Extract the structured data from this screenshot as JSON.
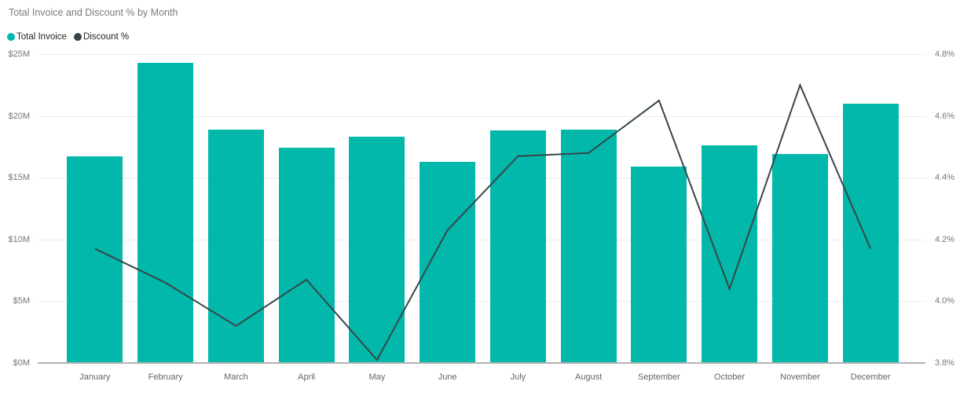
{
  "title": "Total Invoice and Discount % by Month",
  "legend": {
    "items": [
      {
        "label": "Total Invoice",
        "color": "#01B8AA"
      },
      {
        "label": "Discount %",
        "color": "#374649"
      }
    ]
  },
  "left_axis": {
    "tick_labels": [
      "$25M",
      "$20M",
      "$15M",
      "$10M",
      "$5M",
      "$0M"
    ]
  },
  "right_axis": {
    "tick_labels": [
      "4.8%",
      "4.6%",
      "4.4%",
      "4.2%",
      "4.0%",
      "3.8%"
    ]
  },
  "chart_data": {
    "type": "combo-bar-line",
    "title": "Total Invoice and Discount % by Month",
    "categories": [
      "January",
      "February",
      "March",
      "April",
      "May",
      "June",
      "July",
      "August",
      "September",
      "October",
      "November",
      "December"
    ],
    "series": [
      {
        "name": "Total Invoice",
        "type": "bar",
        "axis": "left",
        "color": "#01B8AA",
        "unit": "$M",
        "values": [
          16.7,
          24.3,
          18.9,
          17.4,
          18.3,
          16.3,
          18.8,
          18.9,
          15.9,
          17.6,
          16.9,
          21.0
        ]
      },
      {
        "name": "Discount %",
        "type": "line",
        "axis": "right",
        "color": "#374649",
        "unit": "%",
        "values": [
          4.17,
          4.06,
          3.92,
          4.07,
          3.81,
          4.23,
          4.47,
          4.48,
          4.65,
          4.04,
          4.7,
          4.17
        ]
      }
    ],
    "left_ylim": [
      0,
      25
    ],
    "right_ylim": [
      3.8,
      4.8
    ],
    "grid": true,
    "legend_position": "top-left",
    "colors": {
      "gridline": "#ececec",
      "axis_baseline": "#b3b3b3",
      "title_text": "#777b7f",
      "axis_text": "#777777"
    }
  }
}
